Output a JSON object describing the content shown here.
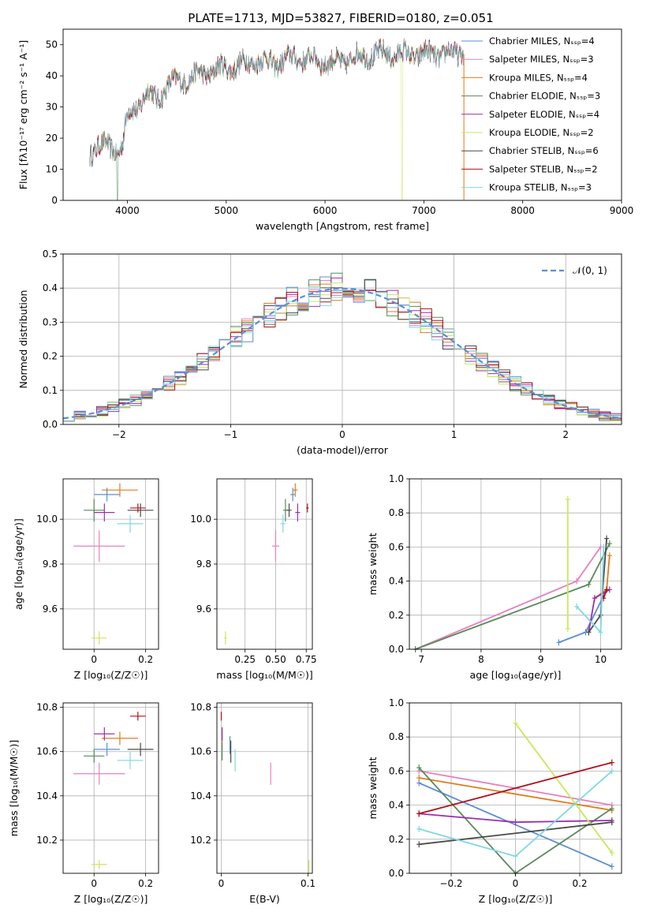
{
  "figure_title": "PLATE=1713, MJD=53827, FIBERID=0180, z=0.051",
  "colors": {
    "chabrier_miles": "#5b8ed6",
    "salpeter_miles": "#e87fbf",
    "kroupa_miles": "#e07b1f",
    "chabrier_elodie": "#5a8a5a",
    "salpeter_elodie": "#9a2fb0",
    "kroupa_elodie": "#c8e85a",
    "chabrier_stelib": "#4a4a4a",
    "salpeter_stelib": "#b0101a",
    "kroupa_stelib": "#7fd8e0",
    "grid": "#b0b0b0",
    "gauss": "#5b8ed6"
  },
  "chart_data": [
    {
      "id": "spectrum",
      "type": "line",
      "title": "PLATE=1713, MJD=53827, FIBERID=0180, z=0.051",
      "xlabel": "wavelength [Angstrom, rest frame]",
      "ylabel": "Flux [fλ10⁻¹⁷ erg cm⁻² s⁻¹ A⁻¹]",
      "xlim": [
        3350,
        9000
      ],
      "ylim": [
        0,
        55
      ],
      "xticks": [
        4000,
        5000,
        6000,
        7000,
        8000,
        9000
      ],
      "yticks": [
        0,
        10,
        20,
        30,
        40,
        50
      ],
      "grid": false,
      "legend_position": "top-right",
      "spectrum_envelope": {
        "x": [
          3620,
          3700,
          3800,
          3900,
          3950,
          4000,
          4100,
          4200,
          4300,
          4400,
          4500,
          4700,
          4900,
          5100,
          5300,
          5500,
          5700,
          5900,
          6100,
          6300,
          6500,
          6700,
          6900,
          7100,
          7300,
          7400
        ],
        "y": [
          15,
          18,
          17,
          16,
          18,
          27,
          30,
          35,
          32,
          37,
          38,
          40,
          42,
          43,
          45,
          44,
          46,
          45,
          44,
          46,
          47,
          47,
          47,
          47,
          47,
          48
        ]
      },
      "series": [
        {
          "name": "Chabrier MILES, N_SSP=4",
          "color_key": "chabrier_miles"
        },
        {
          "name": "Salpeter MILES, N_SSP=3",
          "color_key": "salpeter_miles"
        },
        {
          "name": "Kroupa MILES, N_SSP=4",
          "color_key": "kroupa_miles"
        },
        {
          "name": "Chabrier ELODIE, N_SSP=3",
          "color_key": "chabrier_elodie"
        },
        {
          "name": "Salpeter ELODIE, N_SSP=4",
          "color_key": "salpeter_elodie"
        },
        {
          "name": "Kroupa ELODIE, N_SSP=2",
          "color_key": "kroupa_elodie"
        },
        {
          "name": "Chabrier STELIB, N_SSP=6",
          "color_key": "chabrier_stelib"
        },
        {
          "name": "Salpeter STELIB, N_SSP=2",
          "color_key": "salpeter_stelib"
        },
        {
          "name": "Kroupa STELIB, N_SSP=3",
          "color_key": "kroupa_stelib"
        }
      ]
    },
    {
      "id": "residuals",
      "type": "line",
      "title": "",
      "xlabel": "(data-model)/error",
      "ylabel": "Normed distribution",
      "xlim": [
        -2.5,
        2.5
      ],
      "ylim": [
        0,
        0.5
      ],
      "xticks": [
        -2,
        -1,
        0,
        1,
        2
      ],
      "yticks": [
        0.0,
        0.1,
        0.2,
        0.3,
        0.4,
        0.5
      ],
      "grid": true,
      "legend_position": "top-right",
      "legend": "𝒩(0, 1)",
      "bin_width": 0.1
    },
    {
      "id": "z_age",
      "type": "scatter",
      "xlabel": "Z [log₁₀(Z/Z☉)]",
      "ylabel": "age  [log₁₀(age/yr)]",
      "xlim": [
        -0.12,
        0.25
      ],
      "ylim": [
        9.42,
        10.18
      ],
      "xticks": [
        0.0,
        0.2
      ],
      "yticks": [
        9.6,
        9.8,
        10.0
      ],
      "grid": true,
      "points": [
        {
          "key": "chabrier_miles",
          "x": 0.05,
          "y": 10.11,
          "xerr": 0.05,
          "yerr": 0.03
        },
        {
          "key": "salpeter_miles",
          "x": 0.02,
          "y": 9.88,
          "xerr": 0.1,
          "yerr": 0.07
        },
        {
          "key": "kroupa_miles",
          "x": 0.1,
          "y": 10.13,
          "xerr": 0.07,
          "yerr": 0.03
        },
        {
          "key": "chabrier_elodie",
          "x": 0.0,
          "y": 10.04,
          "xerr": 0.04,
          "yerr": 0.05
        },
        {
          "key": "salpeter_elodie",
          "x": 0.04,
          "y": 10.03,
          "xerr": 0.04,
          "yerr": 0.04
        },
        {
          "key": "kroupa_elodie",
          "x": 0.02,
          "y": 9.47,
          "xerr": 0.03,
          "yerr": 0.03
        },
        {
          "key": "chabrier_stelib",
          "x": 0.18,
          "y": 10.04,
          "xerr": 0.05,
          "yerr": 0.03
        },
        {
          "key": "salpeter_stelib",
          "x": 0.17,
          "y": 10.05,
          "xerr": 0.03,
          "yerr": 0.02
        },
        {
          "key": "kroupa_stelib",
          "x": 0.14,
          "y": 9.98,
          "xerr": 0.05,
          "yerr": 0.04
        }
      ]
    },
    {
      "id": "mass_age",
      "type": "scatter",
      "xlabel": "mass [log₁₀(M/M☉)]",
      "ylabel": "",
      "xlim": [
        0.02,
        0.8
      ],
      "ylim": [
        9.42,
        10.18
      ],
      "xticks": [
        0.25,
        0.5,
        0.75
      ],
      "xtick_labels": [
        "0.25",
        "0.50",
        "0.75"
      ],
      "yticks": [
        9.6,
        9.8,
        10.0
      ],
      "grid": true,
      "points": [
        {
          "key": "chabrier_miles",
          "x": 0.64,
          "y": 10.11,
          "xerr": 0.02,
          "yerr": 0.03
        },
        {
          "key": "salpeter_miles",
          "x": 0.5,
          "y": 9.88,
          "xerr": 0.03,
          "yerr": 0.07
        },
        {
          "key": "kroupa_miles",
          "x": 0.66,
          "y": 10.13,
          "xerr": 0.02,
          "yerr": 0.03
        },
        {
          "key": "chabrier_elodie",
          "x": 0.58,
          "y": 10.04,
          "xerr": 0.02,
          "yerr": 0.05
        },
        {
          "key": "salpeter_elodie",
          "x": 0.68,
          "y": 10.03,
          "xerr": 0.02,
          "yerr": 0.04
        },
        {
          "key": "kroupa_elodie",
          "x": 0.09,
          "y": 9.47,
          "xerr": 0.01,
          "yerr": 0.03
        },
        {
          "key": "chabrier_stelib",
          "x": 0.61,
          "y": 10.04,
          "xerr": 0.02,
          "yerr": 0.03
        },
        {
          "key": "salpeter_stelib",
          "x": 0.76,
          "y": 10.05,
          "xerr": 0.01,
          "yerr": 0.02
        },
        {
          "key": "kroupa_stelib",
          "x": 0.56,
          "y": 9.98,
          "xerr": 0.02,
          "yerr": 0.04
        }
      ]
    },
    {
      "id": "age_weight",
      "type": "line",
      "xlabel": "age  [log₁₀(age/yr)]",
      "ylabel": "mass weight",
      "xlim": [
        6.8,
        10.35
      ],
      "ylim": [
        0,
        1.0
      ],
      "xticks": [
        7,
        8,
        9,
        10
      ],
      "yticks": [
        0.0,
        0.2,
        0.4,
        0.6,
        0.8,
        1.0
      ],
      "grid": true,
      "series": [
        {
          "key": "chabrier_miles",
          "x": [
            9.3,
            9.75,
            10.1
          ],
          "y": [
            0.04,
            0.1,
            0.35
          ]
        },
        {
          "key": "salpeter_miles",
          "x": [
            6.9,
            9.6,
            10.0
          ],
          "y": [
            0.0,
            0.4,
            0.6
          ]
        },
        {
          "key": "kroupa_miles",
          "x": [
            9.9,
            10.1,
            10.15
          ],
          "y": [
            0.3,
            0.35,
            0.55
          ]
        },
        {
          "key": "chabrier_elodie",
          "x": [
            6.9,
            9.8,
            10.15
          ],
          "y": [
            0.0,
            0.38,
            0.62
          ]
        },
        {
          "key": "salpeter_elodie",
          "x": [
            9.8,
            9.9,
            10.15
          ],
          "y": [
            0.1,
            0.3,
            0.35
          ]
        },
        {
          "key": "kroupa_elodie",
          "x": [
            9.45,
            9.45
          ],
          "y": [
            0.12,
            0.88
          ]
        },
        {
          "key": "chabrier_stelib",
          "x": [
            9.8,
            10.0,
            10.1
          ],
          "y": [
            0.1,
            0.2,
            0.65
          ]
        },
        {
          "key": "salpeter_stelib",
          "x": [
            10.05,
            10.1
          ],
          "y": [
            0.3,
            0.35
          ]
        },
        {
          "key": "kroupa_stelib",
          "x": [
            9.6,
            10.0,
            10.05
          ],
          "y": [
            0.25,
            0.1,
            0.6
          ]
        }
      ]
    },
    {
      "id": "z_mass",
      "type": "scatter",
      "xlabel": "Z [log₁₀(Z/Z☉)]",
      "ylabel": "mass [log₁₀(M/M☉)]",
      "xlim": [
        -0.12,
        0.25
      ],
      "ylim": [
        10.05,
        10.82
      ],
      "xticks": [
        0.0,
        0.2
      ],
      "yticks": [
        10.2,
        10.4,
        10.6,
        10.8
      ],
      "grid": true,
      "points": [
        {
          "key": "chabrier_miles",
          "x": 0.05,
          "y": 10.61,
          "xerr": 0.05,
          "yerr": 0.03
        },
        {
          "key": "salpeter_miles",
          "x": 0.02,
          "y": 10.5,
          "xerr": 0.1,
          "yerr": 0.05
        },
        {
          "key": "kroupa_miles",
          "x": 0.1,
          "y": 10.66,
          "xerr": 0.07,
          "yerr": 0.03
        },
        {
          "key": "chabrier_elodie",
          "x": 0.0,
          "y": 10.58,
          "xerr": 0.04,
          "yerr": 0.03
        },
        {
          "key": "salpeter_elodie",
          "x": 0.04,
          "y": 10.68,
          "xerr": 0.04,
          "yerr": 0.03
        },
        {
          "key": "kroupa_elodie",
          "x": 0.02,
          "y": 10.09,
          "xerr": 0.03,
          "yerr": 0.02
        },
        {
          "key": "chabrier_stelib",
          "x": 0.18,
          "y": 10.61,
          "xerr": 0.05,
          "yerr": 0.03
        },
        {
          "key": "salpeter_stelib",
          "x": 0.17,
          "y": 10.76,
          "xerr": 0.03,
          "yerr": 0.02
        },
        {
          "key": "kroupa_stelib",
          "x": 0.14,
          "y": 10.56,
          "xerr": 0.05,
          "yerr": 0.04
        }
      ]
    },
    {
      "id": "ebv_mass",
      "type": "scatter",
      "xlabel": "E(B-V)",
      "ylabel": "",
      "xlim": [
        -0.005,
        0.105
      ],
      "ylim": [
        10.05,
        10.82
      ],
      "xticks": [
        0.0,
        0.1
      ],
      "yticks": [
        10.2,
        10.4,
        10.6,
        10.8
      ],
      "grid": true,
      "points": [
        {
          "key": "chabrier_miles",
          "x": 0.01,
          "y": 10.63,
          "xerr": 0.0,
          "yerr": 0.04
        },
        {
          "key": "salpeter_miles",
          "x": 0.057,
          "y": 10.5,
          "xerr": 0.0,
          "yerr": 0.05
        },
        {
          "key": "kroupa_miles",
          "x": 0.001,
          "y": 10.67,
          "xerr": 0.0,
          "yerr": 0.03
        },
        {
          "key": "chabrier_elodie",
          "x": 0.001,
          "y": 10.6,
          "xerr": 0.0,
          "yerr": 0.04
        },
        {
          "key": "salpeter_elodie",
          "x": 0.001,
          "y": 10.68,
          "xerr": 0.0,
          "yerr": 0.03
        },
        {
          "key": "kroupa_elodie",
          "x": 0.101,
          "y": 10.08,
          "xerr": 0.0,
          "yerr": 0.03
        },
        {
          "key": "chabrier_stelib",
          "x": 0.011,
          "y": 10.6,
          "xerr": 0.0,
          "yerr": 0.05
        },
        {
          "key": "salpeter_stelib",
          "x": 0.0,
          "y": 10.76,
          "xerr": 0.0,
          "yerr": 0.02
        },
        {
          "key": "kroupa_stelib",
          "x": 0.016,
          "y": 10.56,
          "xerr": 0.0,
          "yerr": 0.05
        }
      ]
    },
    {
      "id": "z_weight",
      "type": "line",
      "xlabel": "Z [log₁₀(Z/Z☉)]",
      "ylabel": "mass weight",
      "xlim": [
        -0.33,
        0.33
      ],
      "ylim": [
        0,
        1.0
      ],
      "xticks": [
        -0.2,
        0.0,
        0.2
      ],
      "yticks": [
        0.0,
        0.2,
        0.4,
        0.6,
        0.8,
        1.0
      ],
      "grid": true,
      "series": [
        {
          "key": "chabrier_miles",
          "x": [
            -0.3,
            0.3
          ],
          "y": [
            0.53,
            0.04
          ]
        },
        {
          "key": "salpeter_miles",
          "x": [
            -0.3,
            0.3
          ],
          "y": [
            0.6,
            0.4
          ]
        },
        {
          "key": "kroupa_miles",
          "x": [
            -0.3,
            0.3
          ],
          "y": [
            0.56,
            0.37
          ]
        },
        {
          "key": "chabrier_elodie",
          "x": [
            -0.3,
            0.0,
            0.3
          ],
          "y": [
            0.62,
            0.0,
            0.38
          ]
        },
        {
          "key": "salpeter_elodie",
          "x": [
            -0.3,
            0.0,
            0.3
          ],
          "y": [
            0.35,
            0.3,
            0.31
          ]
        },
        {
          "key": "kroupa_elodie",
          "x": [
            0.0,
            0.3
          ],
          "y": [
            0.88,
            0.12
          ]
        },
        {
          "key": "chabrier_stelib",
          "x": [
            -0.3,
            0.3
          ],
          "y": [
            0.17,
            0.3
          ]
        },
        {
          "key": "salpeter_stelib",
          "x": [
            -0.3,
            0.3
          ],
          "y": [
            0.35,
            0.65
          ]
        },
        {
          "key": "kroupa_stelib",
          "x": [
            -0.3,
            0.0,
            0.3
          ],
          "y": [
            0.26,
            0.1,
            0.6
          ]
        }
      ]
    }
  ]
}
